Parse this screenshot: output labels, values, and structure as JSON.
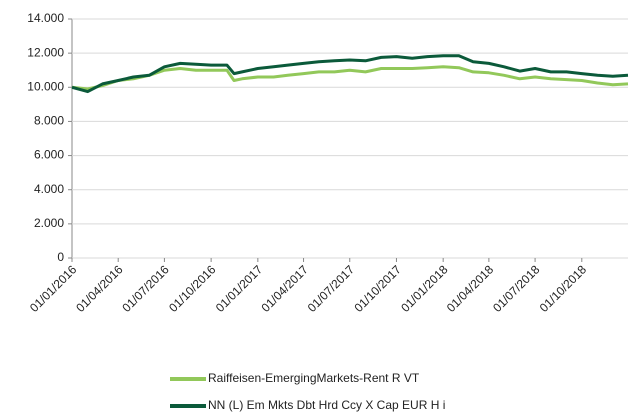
{
  "chart_data": {
    "type": "line",
    "x": [
      "2016-01-01",
      "2016-02-01",
      "2016-03-01",
      "2016-04-01",
      "2016-05-01",
      "2016-06-01",
      "2016-07-01",
      "2016-08-01",
      "2016-09-01",
      "2016-10-01",
      "2016-11-01",
      "2016-11-15",
      "2016-12-01",
      "2017-01-01",
      "2017-02-01",
      "2017-03-01",
      "2017-04-01",
      "2017-05-01",
      "2017-06-01",
      "2017-07-01",
      "2017-08-01",
      "2017-09-01",
      "2017-10-01",
      "2017-11-01",
      "2017-12-01",
      "2018-01-01",
      "2018-02-01",
      "2018-03-01",
      "2018-04-01",
      "2018-05-01",
      "2018-06-01",
      "2018-07-01",
      "2018-08-01",
      "2018-09-01",
      "2018-10-01",
      "2018-11-01",
      "2018-12-01",
      "2018-12-31"
    ],
    "series": [
      {
        "name": "Raiffeisen-EmergingMarkets-Rent R VT",
        "color": "#92c85a",
        "values": [
          10000,
          9900,
          10100,
          10400,
          10500,
          10700,
          11000,
          11100,
          11000,
          11000,
          11000,
          10400,
          10500,
          10600,
          10600,
          10700,
          10800,
          10900,
          10900,
          11000,
          10900,
          11100,
          11100,
          11100,
          11150,
          11200,
          11150,
          10900,
          10850,
          10700,
          10500,
          10600,
          10500,
          10450,
          10400,
          10250,
          10150,
          10200
        ]
      },
      {
        "name": "NN (L) Em Mkts Dbt Hrd Ccy X Cap EUR H i",
        "color": "#0b5a3a",
        "values": [
          10000,
          9750,
          10200,
          10400,
          10600,
          10700,
          11200,
          11400,
          11350,
          11300,
          11300,
          10800,
          10900,
          11100,
          11200,
          11300,
          11400,
          11500,
          11550,
          11600,
          11550,
          11750,
          11800,
          11700,
          11800,
          11850,
          11850,
          11500,
          11400,
          11200,
          10950,
          11100,
          10900,
          10900,
          10800,
          10700,
          10650,
          10700
        ]
      }
    ],
    "xlim": [
      "2016-01-01",
      "2018-12-31"
    ],
    "xticks": [
      {
        "value": "2016-01-01",
        "label": "01/01/2016"
      },
      {
        "value": "2016-04-01",
        "label": "01/04/2016"
      },
      {
        "value": "2016-07-01",
        "label": "01/07/2016"
      },
      {
        "value": "2016-10-01",
        "label": "01/10/2016"
      },
      {
        "value": "2017-01-01",
        "label": "01/01/2017"
      },
      {
        "value": "2017-04-01",
        "label": "01/04/2017"
      },
      {
        "value": "2017-07-01",
        "label": "01/07/2017"
      },
      {
        "value": "2017-10-01",
        "label": "01/10/2017"
      },
      {
        "value": "2018-01-01",
        "label": "01/01/2018"
      },
      {
        "value": "2018-04-01",
        "label": "01/04/2018"
      },
      {
        "value": "2018-07-01",
        "label": "01/07/2018"
      },
      {
        "value": "2018-10-01",
        "label": "01/10/2018"
      }
    ],
    "ylim": [
      0,
      14000
    ],
    "yticks": [
      0,
      {
        "value": 2000,
        "label": "2.000"
      },
      {
        "value": 4000,
        "label": "4.000"
      },
      {
        "value": 6000,
        "label": "6.000"
      },
      {
        "value": 8000,
        "label": "8.000"
      },
      {
        "value": 10000,
        "label": "10.000"
      },
      {
        "value": 12000,
        "label": "12.000"
      },
      {
        "value": 14000,
        "label": "14.000"
      }
    ],
    "grid": true,
    "legend": "bottom"
  }
}
